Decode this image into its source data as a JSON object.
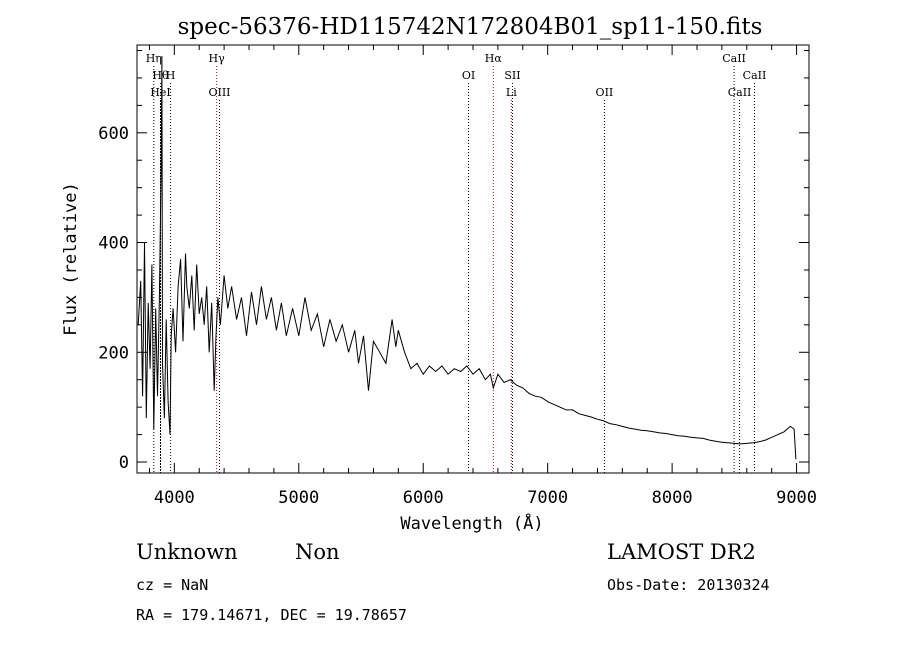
{
  "chart_data": {
    "type": "line",
    "title": "spec-56376-HD115742N172804B01_sp11-150.fits",
    "xlabel": "Wavelength (Å)",
    "ylabel": "Flux (relative)",
    "xlim": [
      3700,
      9100
    ],
    "ylim": [
      -20,
      760
    ],
    "xticks": [
      4000,
      5000,
      6000,
      7000,
      8000,
      9000
    ],
    "yticks": [
      0,
      200,
      400,
      600
    ],
    "series": [
      {
        "color": "#000000",
        "points": [
          [
            3710,
            250
          ],
          [
            3730,
            330
          ],
          [
            3745,
            120
          ],
          [
            3760,
            400
          ],
          [
            3775,
            80
          ],
          [
            3790,
            290
          ],
          [
            3805,
            170
          ],
          [
            3820,
            360
          ],
          [
            3835,
            60
          ],
          [
            3850,
            280
          ],
          [
            3865,
            120
          ],
          [
            3880,
            300
          ],
          [
            3895,
            560
          ],
          [
            3900,
            740
          ],
          [
            3905,
            180
          ],
          [
            3920,
            80
          ],
          [
            3935,
            260
          ],
          [
            3950,
            110
          ],
          [
            3965,
            50
          ],
          [
            3975,
            230
          ],
          [
            3990,
            280
          ],
          [
            4010,
            200
          ],
          [
            4030,
            320
          ],
          [
            4050,
            370
          ],
          [
            4070,
            220
          ],
          [
            4090,
            380
          ],
          [
            4100,
            320
          ],
          [
            4120,
            280
          ],
          [
            4140,
            340
          ],
          [
            4160,
            240
          ],
          [
            4180,
            360
          ],
          [
            4200,
            270
          ],
          [
            4220,
            300
          ],
          [
            4240,
            250
          ],
          [
            4260,
            320
          ],
          [
            4280,
            200
          ],
          [
            4300,
            290
          ],
          [
            4320,
            130
          ],
          [
            4335,
            230
          ],
          [
            4350,
            300
          ],
          [
            4370,
            250
          ],
          [
            4400,
            340
          ],
          [
            4430,
            280
          ],
          [
            4460,
            320
          ],
          [
            4500,
            260
          ],
          [
            4540,
            300
          ],
          [
            4580,
            230
          ],
          [
            4620,
            310
          ],
          [
            4660,
            250
          ],
          [
            4700,
            320
          ],
          [
            4740,
            260
          ],
          [
            4780,
            300
          ],
          [
            4820,
            240
          ],
          [
            4860,
            290
          ],
          [
            4900,
            230
          ],
          [
            4950,
            280
          ],
          [
            5000,
            230
          ],
          [
            5050,
            300
          ],
          [
            5100,
            240
          ],
          [
            5150,
            270
          ],
          [
            5200,
            210
          ],
          [
            5250,
            260
          ],
          [
            5300,
            220
          ],
          [
            5350,
            250
          ],
          [
            5400,
            200
          ],
          [
            5450,
            240
          ],
          [
            5480,
            180
          ],
          [
            5520,
            230
          ],
          [
            5560,
            130
          ],
          [
            5600,
            220
          ],
          [
            5650,
            200
          ],
          [
            5700,
            180
          ],
          [
            5750,
            260
          ],
          [
            5780,
            210
          ],
          [
            5800,
            240
          ],
          [
            5850,
            200
          ],
          [
            5900,
            170
          ],
          [
            5950,
            180
          ],
          [
            6000,
            160
          ],
          [
            6050,
            175
          ],
          [
            6100,
            165
          ],
          [
            6150,
            175
          ],
          [
            6200,
            160
          ],
          [
            6250,
            170
          ],
          [
            6300,
            165
          ],
          [
            6350,
            175
          ],
          [
            6400,
            160
          ],
          [
            6450,
            170
          ],
          [
            6500,
            150
          ],
          [
            6540,
            160
          ],
          [
            6563,
            135
          ],
          [
            6600,
            160
          ],
          [
            6650,
            145
          ],
          [
            6700,
            150
          ],
          [
            6750,
            140
          ],
          [
            6800,
            135
          ],
          [
            6850,
            125
          ],
          [
            6900,
            120
          ],
          [
            6950,
            118
          ],
          [
            7000,
            110
          ],
          [
            7050,
            105
          ],
          [
            7100,
            100
          ],
          [
            7150,
            95
          ],
          [
            7200,
            95
          ],
          [
            7250,
            88
          ],
          [
            7300,
            85
          ],
          [
            7350,
            82
          ],
          [
            7400,
            78
          ],
          [
            7450,
            75
          ],
          [
            7500,
            70
          ],
          [
            7550,
            68
          ],
          [
            7600,
            65
          ],
          [
            7650,
            62
          ],
          [
            7700,
            60
          ],
          [
            7750,
            58
          ],
          [
            7800,
            57
          ],
          [
            7850,
            55
          ],
          [
            7900,
            53
          ],
          [
            7950,
            52
          ],
          [
            8000,
            50
          ],
          [
            8050,
            48
          ],
          [
            8100,
            47
          ],
          [
            8150,
            45
          ],
          [
            8200,
            44
          ],
          [
            8250,
            43
          ],
          [
            8300,
            40
          ],
          [
            8350,
            38
          ],
          [
            8400,
            36
          ],
          [
            8450,
            35
          ],
          [
            8500,
            34
          ],
          [
            8550,
            33
          ],
          [
            8600,
            34
          ],
          [
            8650,
            35
          ],
          [
            8700,
            37
          ],
          [
            8750,
            40
          ],
          [
            8800,
            45
          ],
          [
            8850,
            50
          ],
          [
            8900,
            55
          ],
          [
            8950,
            65
          ],
          [
            8980,
            60
          ],
          [
            8995,
            5
          ]
        ]
      }
    ],
    "line_markers": [
      {
        "wavelength": 3835,
        "label": "Hη",
        "row": 0,
        "color": "#000000"
      },
      {
        "wavelength": 3889,
        "label": "Hθ",
        "row": 1,
        "color": "#000000"
      },
      {
        "wavelength": 3970,
        "label": "H",
        "row": 1,
        "color": "#000000"
      },
      {
        "wavelength": 3889,
        "label": "HeI",
        "row": 2,
        "color": "#000000"
      },
      {
        "wavelength": 4340,
        "label": "Hγ",
        "row": 0,
        "color": "#cc0000"
      },
      {
        "wavelength": 4363,
        "label": "OIII",
        "row": 2,
        "color": "#000000"
      },
      {
        "wavelength": 6364,
        "label": "OI",
        "row": 1,
        "color": "#000000"
      },
      {
        "wavelength": 6563,
        "label": "Hα",
        "row": 0,
        "color": "#cc0000"
      },
      {
        "wavelength": 6717,
        "label": "SII",
        "row": 1,
        "color": "#000000"
      },
      {
        "wavelength": 6708,
        "label": "Li",
        "row": 2,
        "color": "#cc0000"
      },
      {
        "wavelength": 7456,
        "label": "OII",
        "row": 2,
        "color": "#000000"
      },
      {
        "wavelength": 8498,
        "label": "CaII",
        "row": 0,
        "color": "#000000"
      },
      {
        "wavelength": 8662,
        "label": "CaII",
        "row": 1,
        "color": "#000000"
      },
      {
        "wavelength": 8542,
        "label": "CaII",
        "row": 2,
        "color": "#000000"
      }
    ],
    "grid": false,
    "legend": "none"
  },
  "info": {
    "class_label": "Unknown",
    "subclass_label": "Non",
    "survey": "LAMOST DR2",
    "redshift": "cz = NaN",
    "obs_date": "Obs-Date: 20130324",
    "coordinates": "RA = 179.14671, DEC =  19.78657"
  }
}
